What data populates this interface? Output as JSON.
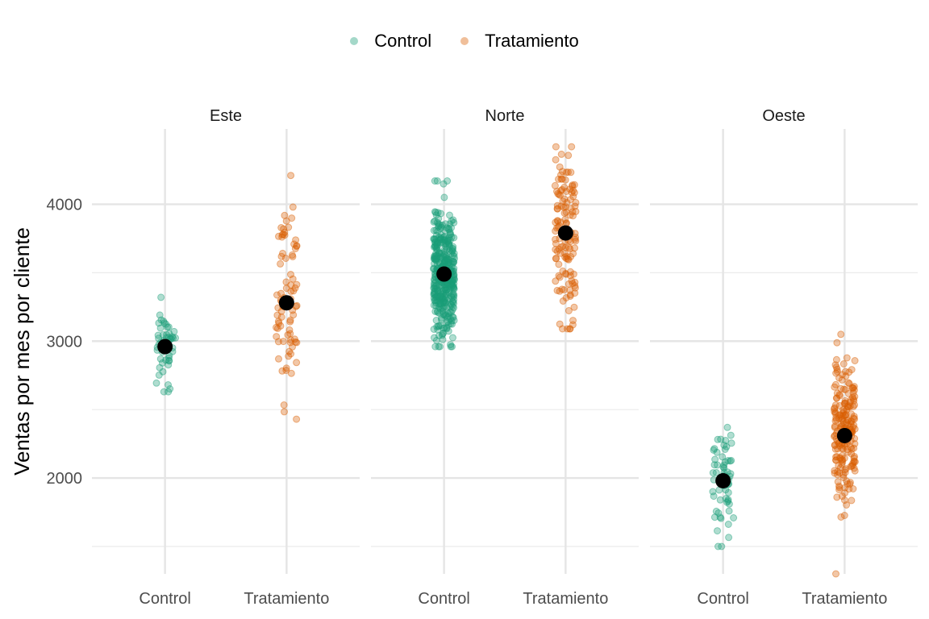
{
  "chart_data": {
    "type": "scatter",
    "title": "",
    "ylabel": "Ventas por mes por cliente",
    "xlabel": "",
    "ylim": [
      1300,
      4550
    ],
    "yticks": [
      2000,
      3000,
      4000
    ],
    "grid": true,
    "legend_position": "top-center",
    "colors": {
      "Control": "#1b9e77",
      "Tratamiento": "#d95f02",
      "mean": "#000000"
    },
    "legend": [
      {
        "name": "Control",
        "color": "#1b9e77"
      },
      {
        "name": "Tratamiento",
        "color": "#d95f02"
      }
    ],
    "categories": [
      "Control",
      "Tratamiento"
    ],
    "panels": [
      {
        "title": "Este",
        "groups": [
          {
            "name": "Control",
            "n": 50,
            "mean": 2960,
            "sd": 150,
            "min": 2630,
            "max": 3320
          },
          {
            "name": "Tratamiento",
            "n": 80,
            "mean": 3280,
            "sd": 330,
            "min": 2430,
            "max": 4210
          }
        ]
      },
      {
        "title": "Norte",
        "groups": [
          {
            "name": "Control",
            "n": 400,
            "mean": 3490,
            "sd": 220,
            "min": 2960,
            "max": 4170
          },
          {
            "name": "Tratamiento",
            "n": 130,
            "mean": 3790,
            "sd": 300,
            "min": 3090,
            "max": 4420
          }
        ]
      },
      {
        "title": "Oeste",
        "groups": [
          {
            "name": "Control",
            "n": 60,
            "mean": 1980,
            "sd": 200,
            "min": 1500,
            "max": 2370
          },
          {
            "name": "Tratamiento",
            "n": 200,
            "mean": 2310,
            "sd": 280,
            "min": 1300,
            "max": 3050
          }
        ]
      }
    ]
  }
}
